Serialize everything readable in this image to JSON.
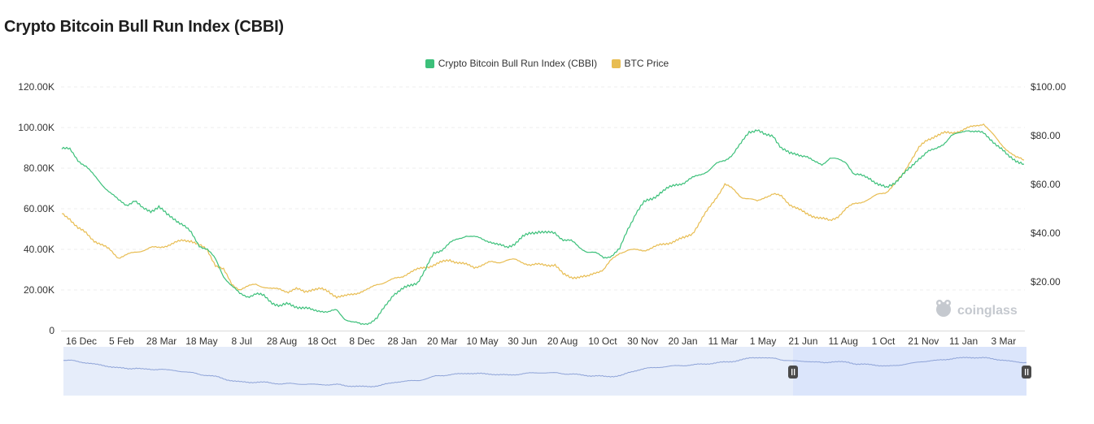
{
  "page": {
    "title": "Crypto Bitcoin Bull Run Index (CBBI)"
  },
  "watermark": {
    "text": "coinglass",
    "icon": "frog-logo-icon"
  },
  "colors": {
    "cbbi": "#3cc07a",
    "btc": "#e8bd52",
    "navigator_line": "#8fa4d8",
    "navigator_fill": "#e6edfa",
    "navigator_selected": "#dbe5fb",
    "grid": "#ececec"
  },
  "chart_data": {
    "type": "line",
    "title": "Crypto Bitcoin Bull Run Index (CBBI)",
    "x_tick_labels": [
      "16 Dec",
      "5 Feb",
      "28 Mar",
      "18 May",
      "8 Jul",
      "28 Aug",
      "18 Oct",
      "8 Dec",
      "28 Jan",
      "20 Mar",
      "10 May",
      "30 Jun",
      "20 Aug",
      "10 Oct",
      "30 Nov",
      "20 Jan",
      "11 Mar",
      "1 May",
      "21 Jun",
      "11 Aug",
      "1 Oct",
      "21 Nov",
      "11 Jan",
      "3 Mar"
    ],
    "left_axis": {
      "ticks": [
        0,
        20000,
        40000,
        60000,
        80000,
        100000,
        120000
      ],
      "tick_labels": [
        "0",
        "20.00K",
        "40.00K",
        "60.00K",
        "80.00K",
        "100.00K",
        "120.00K"
      ],
      "range": [
        0,
        120000
      ]
    },
    "right_axis": {
      "ticks": [
        20,
        40,
        60,
        80,
        100
      ],
      "tick_labels": [
        "$20.00",
        "$40.00",
        "$60.00",
        "$80.00",
        "$100.00"
      ],
      "range": [
        0,
        100
      ]
    },
    "grid": true,
    "legend_position": "top-center",
    "series": [
      {
        "name": "Crypto Bitcoin Bull Run Index (CBBI)",
        "axis": "left",
        "color": "#3cc07a",
        "values": [
          90,
          89,
          84,
          81,
          76,
          72,
          68,
          64,
          62,
          64,
          60,
          59,
          61,
          57,
          55,
          52,
          48,
          42,
          40,
          35,
          27,
          22,
          18,
          17,
          18,
          17,
          14,
          12,
          13,
          12,
          11,
          10,
          10,
          9,
          10,
          6,
          4,
          3,
          4,
          6,
          12,
          18,
          20,
          22,
          24,
          30,
          38,
          40,
          43,
          45,
          47,
          46,
          45,
          44,
          42,
          41,
          43,
          46,
          48,
          49,
          48,
          48,
          45,
          44,
          41,
          39,
          38,
          36,
          37,
          40,
          50,
          58,
          63,
          65,
          68,
          70,
          72,
          73,
          75,
          77,
          79,
          82,
          84,
          87,
          92,
          98,
          99,
          96,
          96,
          90,
          87,
          87,
          86,
          83,
          82,
          85,
          84,
          83,
          77,
          76,
          75,
          72,
          70,
          73,
          77,
          80,
          85,
          88,
          89,
          92,
          96,
          97,
          99,
          98,
          97,
          94,
          90,
          86,
          84,
          82
        ]
      },
      {
        "name": "BTC Price",
        "axis": "right",
        "color": "#e8bd52",
        "values": [
          48,
          46,
          42,
          40,
          37,
          35,
          33,
          30,
          31,
          32,
          33,
          34,
          34,
          35,
          36,
          37,
          37,
          35,
          33,
          27,
          25,
          19,
          17,
          18,
          19,
          18,
          17,
          17,
          16,
          17,
          16,
          17,
          17,
          16,
          14,
          14,
          15,
          16,
          17,
          19,
          20,
          21,
          22,
          24,
          25,
          26,
          27,
          28,
          29,
          28,
          27,
          26,
          27,
          28,
          28,
          29,
          29,
          28,
          27,
          27,
          27,
          27,
          23,
          22,
          22,
          22,
          24,
          25,
          29,
          32,
          33,
          33,
          33,
          34,
          35,
          36,
          37,
          38,
          40,
          45,
          50,
          55,
          60,
          58,
          55,
          54,
          53,
          55,
          56,
          55,
          52,
          50,
          48,
          47,
          46,
          45,
          47,
          50,
          52,
          53,
          54,
          56,
          57,
          60,
          64,
          70,
          75,
          78,
          80,
          81,
          81,
          82,
          83,
          84,
          85,
          81,
          77,
          74,
          71,
          70
        ]
      }
    ]
  }
}
